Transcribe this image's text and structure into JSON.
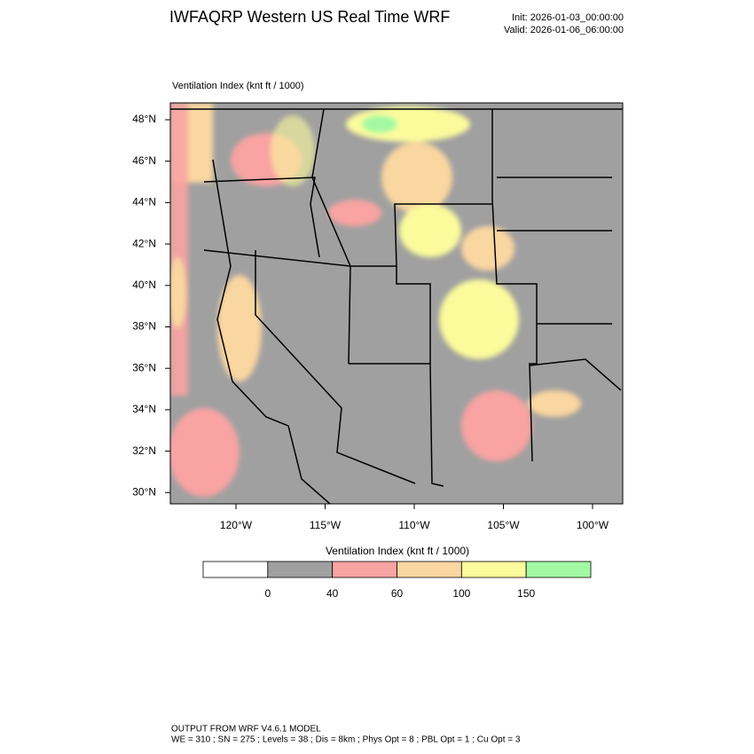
{
  "header": {
    "title": "IWFAQRP Western US Real Time WRF",
    "init": "Init: 2026-01-03_00:00:00",
    "valid": "Valid: 2026-01-06_06:00:00"
  },
  "map": {
    "title": "Ventilation Index   (knt ft / 1000)",
    "lat_labels": [
      "48°N",
      "46°N",
      "44°N",
      "42°N",
      "40°N",
      "38°N",
      "36°N",
      "34°N",
      "32°N",
      "30°N"
    ],
    "lon_labels": [
      "120°W",
      "115°W",
      "110°W",
      "105°W",
      "100°W"
    ]
  },
  "colorbar": {
    "title": "Ventilation Index   (knt ft / 1000)",
    "colors": [
      "#ffffff",
      "#a0a0a0",
      "#f9a3a3",
      "#fad6a0",
      "#fbfb9c",
      "#a3f9a3"
    ],
    "ticks": [
      0,
      40,
      60,
      100,
      150
    ]
  },
  "footer": {
    "line1": "OUTPUT FROM WRF V4.6.1 MODEL",
    "line2": "WE = 310 ; SN = 275 ; Levels = 38 ; Dis = 8km ; Phys Opt = 8 ; PBL Opt = 1 ; Cu Opt = 3"
  }
}
